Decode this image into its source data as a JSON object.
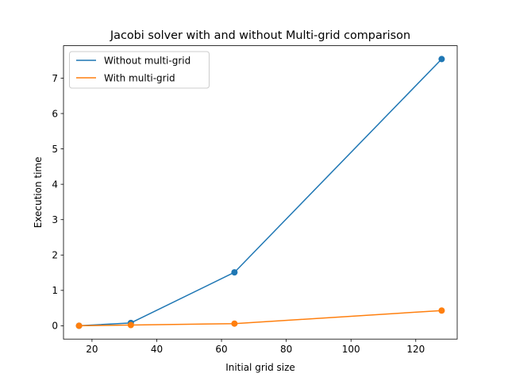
{
  "chart_data": {
    "type": "line",
    "title": "Jacobi solver with and without Multi-grid comparison",
    "xlabel": "Initial grid size",
    "ylabel": "Execution time",
    "xlim": [
      11.2,
      132.8
    ],
    "ylim": [
      -0.377,
      7.917
    ],
    "xticks": [
      20,
      40,
      60,
      80,
      100,
      120
    ],
    "yticks": [
      0,
      1,
      2,
      3,
      4,
      5,
      6,
      7
    ],
    "grid": false,
    "legend_position": "upper-left",
    "series": [
      {
        "name": "Without multi-grid",
        "color": "#1f77b4",
        "x": [
          16,
          32,
          64,
          128
        ],
        "y": [
          0.0,
          0.08,
          1.51,
          7.54
        ]
      },
      {
        "name": "With multi-grid",
        "color": "#ff7f0e",
        "x": [
          16,
          32,
          64,
          128
        ],
        "y": [
          0.0,
          0.02,
          0.06,
          0.43
        ]
      }
    ]
  }
}
